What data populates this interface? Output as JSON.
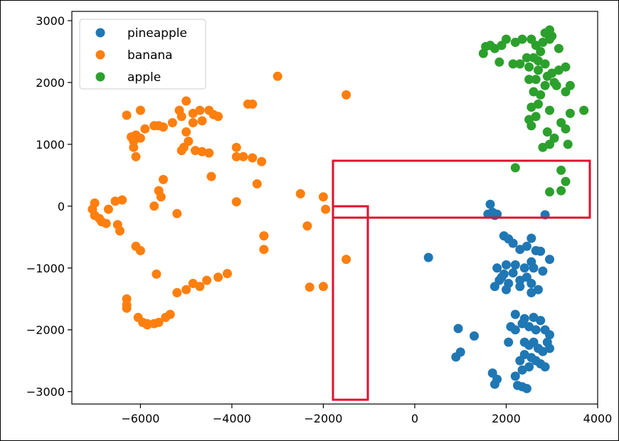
{
  "chart_data": {
    "type": "scatter",
    "title": "",
    "xlabel": "",
    "ylabel": "",
    "xlim": [
      -7500,
      4000
    ],
    "ylim": [
      -3200,
      3150
    ],
    "xticks": [
      -6000,
      -4000,
      -2000,
      0,
      2000,
      4000
    ],
    "xtick_labels": [
      "−6000",
      "−4000",
      "−2000",
      "0",
      "2000",
      "4000"
    ],
    "yticks": [
      -3000,
      -2000,
      -1000,
      0,
      1000,
      2000,
      3000
    ],
    "ytick_labels": [
      "−3000",
      "−2000",
      "−1000",
      "0",
      "1000",
      "2000",
      "3000"
    ],
    "grid": false,
    "legend_position": "upper-left",
    "series": [
      {
        "name": "pineapple",
        "color": "#1f77b4",
        "points": [
          [
            300,
            -830
          ],
          [
            950,
            -1980
          ],
          [
            1300,
            -2100
          ],
          [
            900,
            -2440
          ],
          [
            1000,
            -2360
          ],
          [
            1600,
            -130
          ],
          [
            1650,
            30
          ],
          [
            1700,
            -100
          ],
          [
            1750,
            -150
          ],
          [
            1800,
            -130
          ],
          [
            2850,
            -140
          ],
          [
            1950,
            -480
          ],
          [
            2050,
            -530
          ],
          [
            2150,
            -600
          ],
          [
            2300,
            -700
          ],
          [
            2450,
            -650
          ],
          [
            2550,
            -520
          ],
          [
            2650,
            -720
          ],
          [
            2750,
            -730
          ],
          [
            2950,
            -860
          ],
          [
            2550,
            -900
          ],
          [
            1800,
            -1000
          ],
          [
            1950,
            -1100
          ],
          [
            2000,
            -950
          ],
          [
            2200,
            -950
          ],
          [
            2400,
            -1000
          ],
          [
            2600,
            -1000
          ],
          [
            2800,
            -1050
          ],
          [
            1850,
            -1200
          ],
          [
            2050,
            -1250
          ],
          [
            2300,
            -1200
          ],
          [
            2550,
            -1250
          ],
          [
            1750,
            -1300
          ],
          [
            2000,
            -1350
          ],
          [
            2300,
            -1300
          ],
          [
            2550,
            -1400
          ],
          [
            2700,
            -1350
          ],
          [
            1900,
            -1150
          ],
          [
            2150,
            -1080
          ],
          [
            2450,
            -1150
          ],
          [
            2200,
            -1750
          ],
          [
            2400,
            -1820
          ],
          [
            2600,
            -1800
          ],
          [
            2750,
            -1850
          ],
          [
            2100,
            -1950
          ],
          [
            2200,
            -2000
          ],
          [
            2350,
            -1900
          ],
          [
            2500,
            -1950
          ],
          [
            2650,
            -2000
          ],
          [
            2850,
            -2000
          ],
          [
            2950,
            -2080
          ],
          [
            2050,
            -2200
          ],
          [
            2400,
            -2200
          ],
          [
            2500,
            -2250
          ],
          [
            2600,
            -2200
          ],
          [
            2700,
            -2300
          ],
          [
            2800,
            -2350
          ],
          [
            2900,
            -2200
          ],
          [
            2950,
            -2300
          ],
          [
            2400,
            -2400
          ],
          [
            2550,
            -2450
          ],
          [
            2650,
            -2500
          ],
          [
            2750,
            -2550
          ],
          [
            2850,
            -2600
          ],
          [
            2300,
            -2500
          ],
          [
            2500,
            -2600
          ],
          [
            2350,
            -2650
          ],
          [
            1700,
            -2700
          ],
          [
            1800,
            -2800
          ],
          [
            1750,
            -2880
          ],
          [
            2200,
            -2750
          ],
          [
            2250,
            -2900
          ],
          [
            2350,
            -2920
          ],
          [
            2450,
            -2950
          ]
        ]
      },
      {
        "name": "banana",
        "color": "#ff7f0e",
        "points": [
          [
            -3000,
            2100
          ],
          [
            -1500,
            1800
          ],
          [
            -6300,
            1470
          ],
          [
            -6000,
            1550
          ],
          [
            -5150,
            1550
          ],
          [
            -5000,
            1700
          ],
          [
            -4850,
            1500
          ],
          [
            -4700,
            1550
          ],
          [
            -4500,
            1550
          ],
          [
            -4400,
            1480
          ],
          [
            -4300,
            1450
          ],
          [
            -4650,
            1380
          ],
          [
            -4850,
            1350
          ],
          [
            -5100,
            1450
          ],
          [
            -5300,
            1350
          ],
          [
            -5500,
            1280
          ],
          [
            -5600,
            1300
          ],
          [
            -5700,
            1300
          ],
          [
            -5900,
            1250
          ],
          [
            -6100,
            1150
          ],
          [
            -6200,
            1120
          ],
          [
            -6150,
            1050
          ],
          [
            -6000,
            1100
          ],
          [
            -5000,
            1200
          ],
          [
            -4950,
            1050
          ],
          [
            -5100,
            900
          ],
          [
            -5050,
            950
          ],
          [
            -4800,
            900
          ],
          [
            -4650,
            880
          ],
          [
            -4500,
            860
          ],
          [
            -3900,
            950
          ],
          [
            -3650,
            1650
          ],
          [
            -3550,
            1650
          ],
          [
            -6150,
            950
          ],
          [
            -6100,
            800
          ],
          [
            -3900,
            800
          ],
          [
            -3750,
            800
          ],
          [
            -3550,
            780
          ],
          [
            -3350,
            720
          ],
          [
            -5500,
            430
          ],
          [
            -5600,
            250
          ],
          [
            -5550,
            150
          ],
          [
            -5700,
            0
          ],
          [
            -5200,
            -120
          ],
          [
            -4450,
            480
          ],
          [
            -3900,
            70
          ],
          [
            -3450,
            360
          ],
          [
            -2500,
            200
          ],
          [
            -2000,
            150
          ],
          [
            -1950,
            -50
          ],
          [
            -7050,
            -50
          ],
          [
            -7000,
            50
          ],
          [
            -6850,
            -250
          ],
          [
            -6750,
            -280
          ],
          [
            -6550,
            80
          ],
          [
            -6400,
            100
          ],
          [
            -6700,
            -50
          ],
          [
            -7000,
            -150
          ],
          [
            -6900,
            -200
          ],
          [
            -6500,
            -300
          ],
          [
            -6450,
            -400
          ],
          [
            -3300,
            -480
          ],
          [
            -3300,
            -700
          ],
          [
            -2350,
            -320
          ],
          [
            -6100,
            -650
          ],
          [
            -6000,
            -720
          ],
          [
            -1500,
            -860
          ],
          [
            -5650,
            -1100
          ],
          [
            -4100,
            -1090
          ],
          [
            -4300,
            -1150
          ],
          [
            -4550,
            -1200
          ],
          [
            -4850,
            -1250
          ],
          [
            -4700,
            -1300
          ],
          [
            -5000,
            -1350
          ],
          [
            -5200,
            -1400
          ],
          [
            -2300,
            -1310
          ],
          [
            -2000,
            -1300
          ],
          [
            -6300,
            -1500
          ],
          [
            -6300,
            -1600
          ],
          [
            -6300,
            -1650
          ],
          [
            -6050,
            -1800
          ],
          [
            -5950,
            -1880
          ],
          [
            -5850,
            -1900
          ],
          [
            -5700,
            -1900
          ],
          [
            -5600,
            -1880
          ],
          [
            -5450,
            -1800
          ],
          [
            -5350,
            -1750
          ],
          [
            -5850,
            -1920
          ]
        ]
      },
      {
        "name": "apple",
        "color": "#2ca02c",
        "points": [
          [
            1500,
            2470
          ],
          [
            1550,
            2580
          ],
          [
            1650,
            2600
          ],
          [
            1750,
            2550
          ],
          [
            1900,
            2600
          ],
          [
            2000,
            2700
          ],
          [
            2200,
            2650
          ],
          [
            2350,
            2700
          ],
          [
            2550,
            2700
          ],
          [
            2650,
            2600
          ],
          [
            2750,
            2500
          ],
          [
            2800,
            2650
          ],
          [
            2950,
            2700
          ],
          [
            3000,
            2750
          ],
          [
            3150,
            2550
          ],
          [
            2950,
            2850
          ],
          [
            2850,
            2800
          ],
          [
            2450,
            2400
          ],
          [
            2600,
            2400
          ],
          [
            2700,
            2350
          ],
          [
            2850,
            2300
          ],
          [
            3000,
            2150
          ],
          [
            3150,
            2200
          ],
          [
            3300,
            2250
          ],
          [
            1850,
            2330
          ],
          [
            2150,
            2300
          ],
          [
            2300,
            2300
          ],
          [
            2500,
            2250
          ],
          [
            2700,
            2200
          ],
          [
            2900,
            2100
          ],
          [
            3050,
            2000
          ],
          [
            2500,
            2050
          ],
          [
            2650,
            2050
          ],
          [
            2850,
            1950
          ],
          [
            3100,
            1950
          ],
          [
            2600,
            1850
          ],
          [
            2750,
            1800
          ],
          [
            3300,
            1850
          ],
          [
            3400,
            1950
          ],
          [
            2550,
            1600
          ],
          [
            2700,
            1650
          ],
          [
            2950,
            1550
          ],
          [
            2500,
            1400
          ],
          [
            2650,
            1450
          ],
          [
            2550,
            1300
          ],
          [
            3200,
            1350
          ],
          [
            3400,
            1500
          ],
          [
            3700,
            1550
          ],
          [
            2900,
            1200
          ],
          [
            3050,
            1100
          ],
          [
            2950,
            1000
          ],
          [
            3300,
            1250
          ],
          [
            2800,
            950
          ],
          [
            3350,
            1000
          ],
          [
            2200,
            620
          ],
          [
            3200,
            580
          ],
          [
            3300,
            400
          ],
          [
            2950,
            230
          ],
          [
            3200,
            250
          ]
        ]
      }
    ]
  }
}
